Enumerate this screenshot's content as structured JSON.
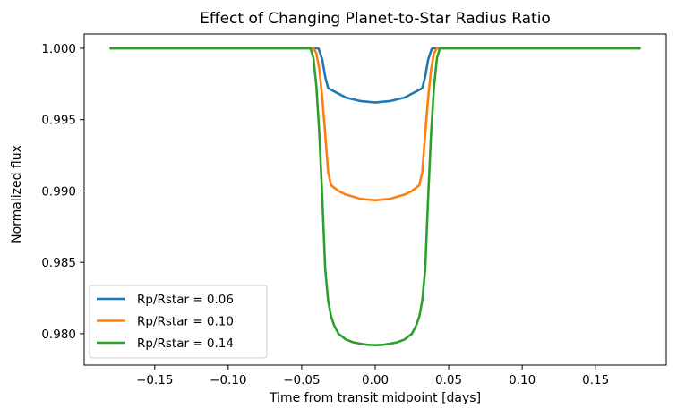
{
  "chart_data": {
    "type": "line",
    "title": "Effect of Changing Planet-to-Star Radius Ratio",
    "xlabel": "Time from transit midpoint [days]",
    "ylabel": "Normalized flux",
    "xlim": [
      -0.198,
      0.198
    ],
    "ylim": [
      0.9778,
      1.001
    ],
    "xticks": [
      -0.15,
      -0.1,
      -0.05,
      0.0,
      0.05,
      0.1,
      0.15
    ],
    "xtick_labels": [
      "−0.15",
      "−0.10",
      "−0.05",
      "0.00",
      "0.05",
      "0.10",
      "0.15"
    ],
    "yticks": [
      0.98,
      0.985,
      0.99,
      0.995,
      1.0
    ],
    "ytick_labels": [
      "0.980",
      "0.985",
      "0.990",
      "0.995",
      "1.000"
    ],
    "grid": false,
    "legend_position": "lower-left",
    "series": [
      {
        "name": "Rp/Rstar = 0.06",
        "color": "#1f77b4",
        "x": [
          -0.18,
          -0.05,
          -0.04,
          -0.0385,
          -0.036,
          -0.034,
          -0.032,
          -0.02,
          -0.01,
          0.0,
          0.01,
          0.02,
          0.032,
          0.034,
          0.036,
          0.0385,
          0.04,
          0.05,
          0.18
        ],
        "y": [
          1.0,
          1.0,
          1.0,
          0.99997,
          0.9992,
          0.998,
          0.9972,
          0.99655,
          0.9963,
          0.9962,
          0.9963,
          0.99655,
          0.9972,
          0.998,
          0.9992,
          0.99997,
          1.0,
          1.0,
          1.0
        ]
      },
      {
        "name": "Rp/Rstar = 0.10",
        "color": "#ff7f0e",
        "x": [
          -0.18,
          -0.05,
          -0.042,
          -0.04,
          -0.038,
          -0.036,
          -0.034,
          -0.032,
          -0.03,
          -0.025,
          -0.02,
          -0.01,
          0.0,
          0.01,
          0.02,
          0.025,
          0.03,
          0.032,
          0.034,
          0.036,
          0.038,
          0.04,
          0.042,
          0.05,
          0.18
        ],
        "y": [
          1.0,
          1.0,
          1.0,
          0.99965,
          0.9985,
          0.9965,
          0.994,
          0.9913,
          0.9904,
          0.99,
          0.98975,
          0.98945,
          0.98935,
          0.98945,
          0.98975,
          0.99,
          0.9904,
          0.9913,
          0.994,
          0.9965,
          0.9985,
          0.99965,
          1.0,
          1.0,
          1.0
        ]
      },
      {
        "name": "Rp/Rstar = 0.14",
        "color": "#2ca02c",
        "x": [
          -0.18,
          -0.05,
          -0.044,
          -0.042,
          -0.04,
          -0.038,
          -0.036,
          -0.034,
          -0.032,
          -0.03,
          -0.028,
          -0.025,
          -0.02,
          -0.015,
          -0.01,
          -0.005,
          0.0,
          0.005,
          0.01,
          0.015,
          0.02,
          0.025,
          0.028,
          0.03,
          0.032,
          0.034,
          0.036,
          0.038,
          0.04,
          0.042,
          0.044,
          0.05,
          0.18
        ],
        "y": [
          1.0,
          1.0,
          1.0,
          0.9993,
          0.9973,
          0.994,
          0.9895,
          0.9845,
          0.9823,
          0.9812,
          0.9806,
          0.98,
          0.9796,
          0.9794,
          0.9793,
          0.97922,
          0.9792,
          0.97922,
          0.9793,
          0.9794,
          0.9796,
          0.98,
          0.9806,
          0.9812,
          0.9823,
          0.9845,
          0.9895,
          0.994,
          0.9973,
          0.9993,
          1.0,
          1.0,
          1.0
        ]
      }
    ]
  }
}
